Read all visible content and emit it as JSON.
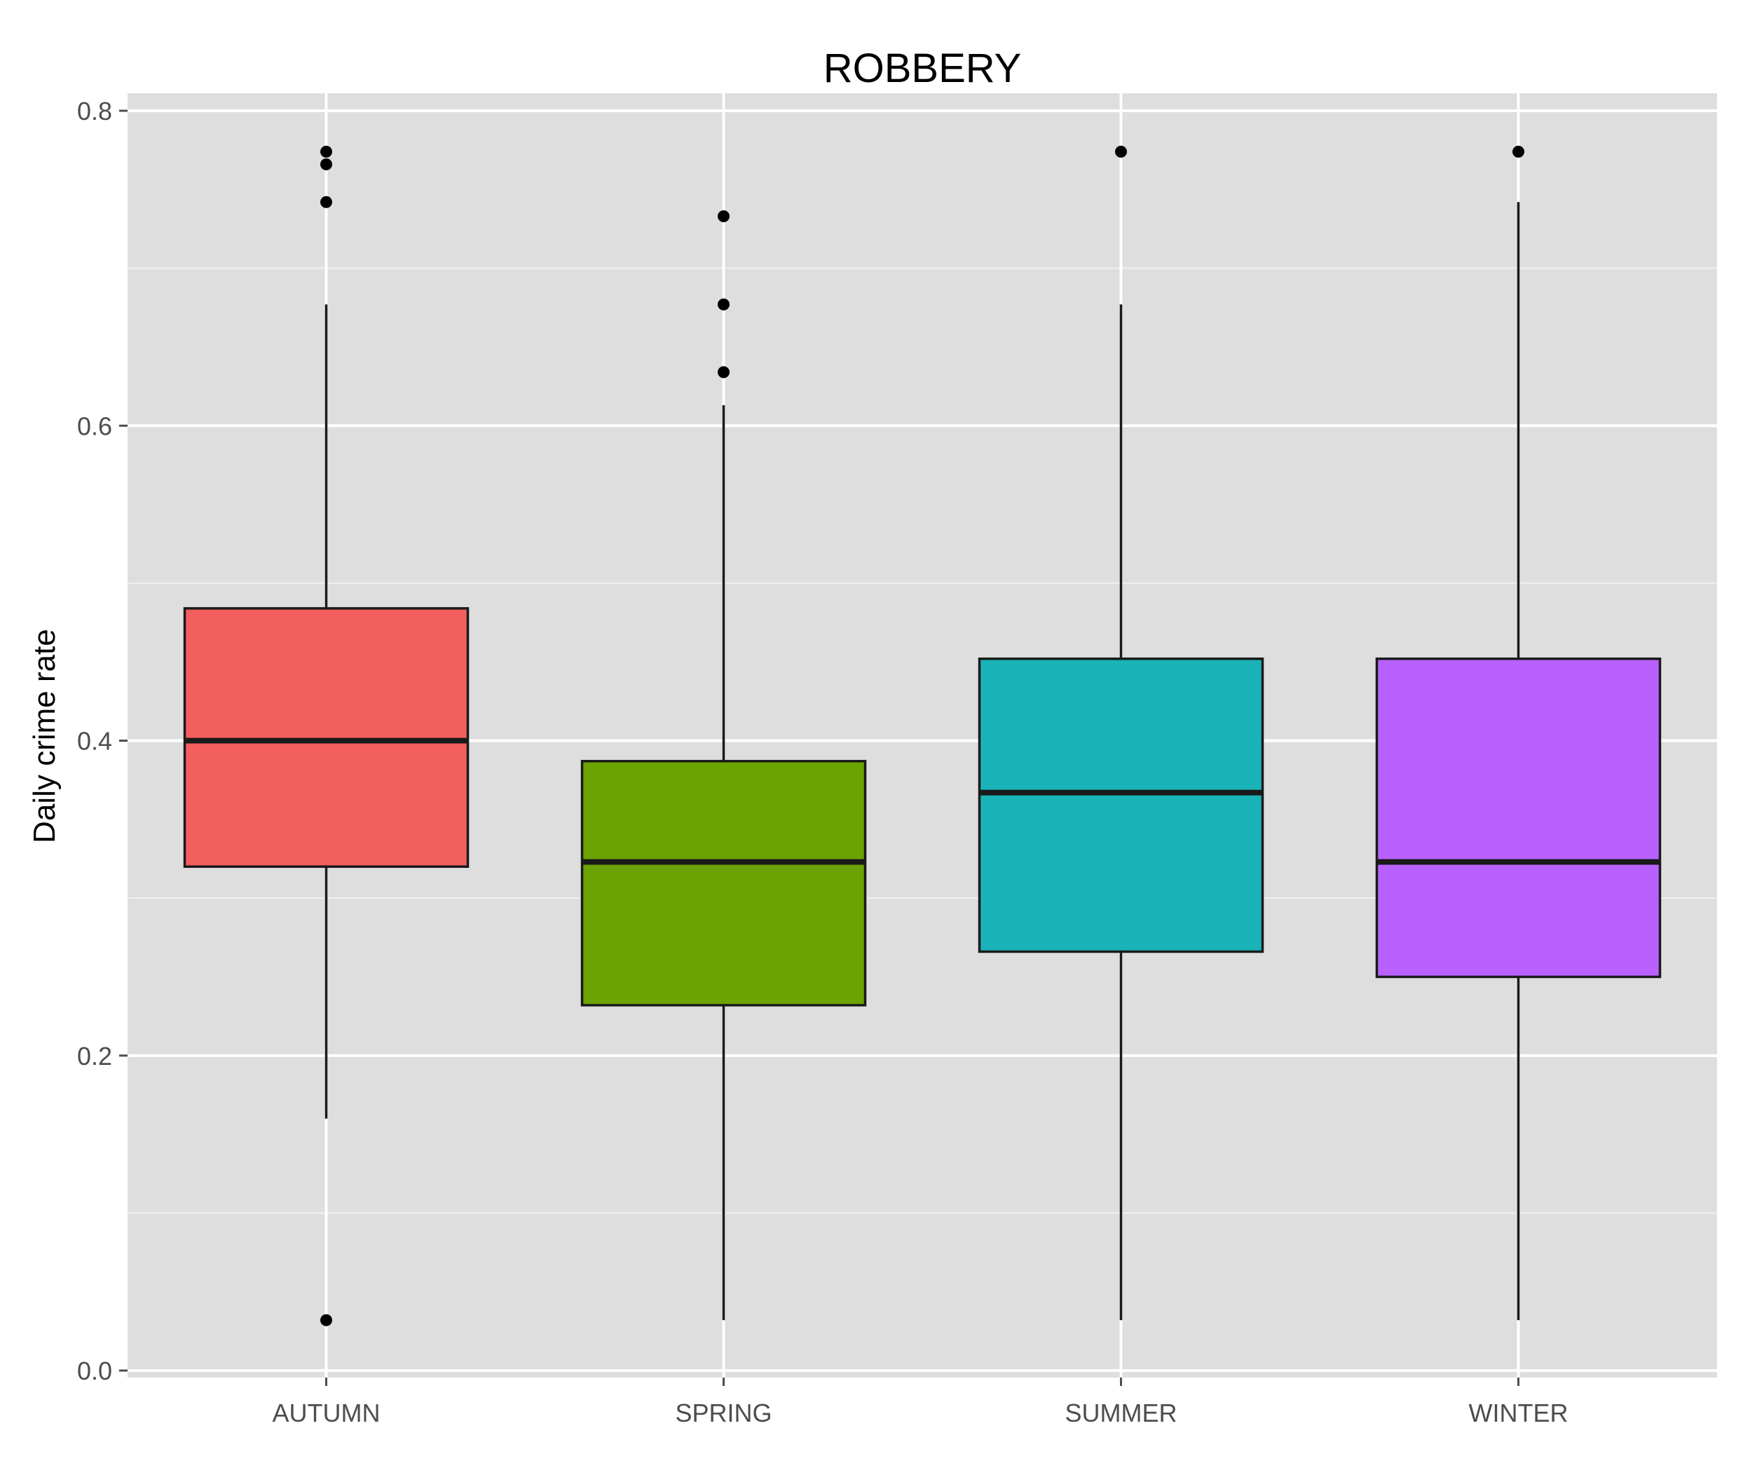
{
  "chart_data": {
    "type": "box",
    "title": "ROBBERY",
    "xlabel": "",
    "ylabel": "Daily crime rate",
    "ylim": [
      0,
      0.8
    ],
    "yticks": [
      "0.0",
      "0.2",
      "0.4",
      "0.6",
      "0.8"
    ],
    "grid": true,
    "panel_background": "#DEDEDE",
    "categories": [
      "AUTUMN",
      "SPRING",
      "SUMMER",
      "WINTER"
    ],
    "boxes": [
      {
        "category": "AUTUMN",
        "color": "#F25F5C",
        "whisker_low": 0.16,
        "q1": 0.32,
        "median": 0.4,
        "q3": 0.484,
        "whisker_high": 0.677,
        "outliers": [
          0.774,
          0.766,
          0.742,
          0.032
        ]
      },
      {
        "category": "SPRING",
        "color": "#6BA302",
        "whisker_low": 0.032,
        "q1": 0.232,
        "median": 0.323,
        "q3": 0.387,
        "whisker_high": 0.613,
        "outliers": [
          0.733,
          0.677,
          0.634
        ]
      },
      {
        "category": "SUMMER",
        "color": "#19B3B8",
        "whisker_low": 0.032,
        "q1": 0.266,
        "median": 0.367,
        "q3": 0.452,
        "whisker_high": 0.677,
        "outliers": [
          0.774
        ]
      },
      {
        "category": "WINTER",
        "color": "#B961FF",
        "whisker_low": 0.032,
        "q1": 0.25,
        "median": 0.323,
        "q3": 0.452,
        "whisker_high": 0.742,
        "outliers": [
          0.774
        ]
      }
    ]
  }
}
